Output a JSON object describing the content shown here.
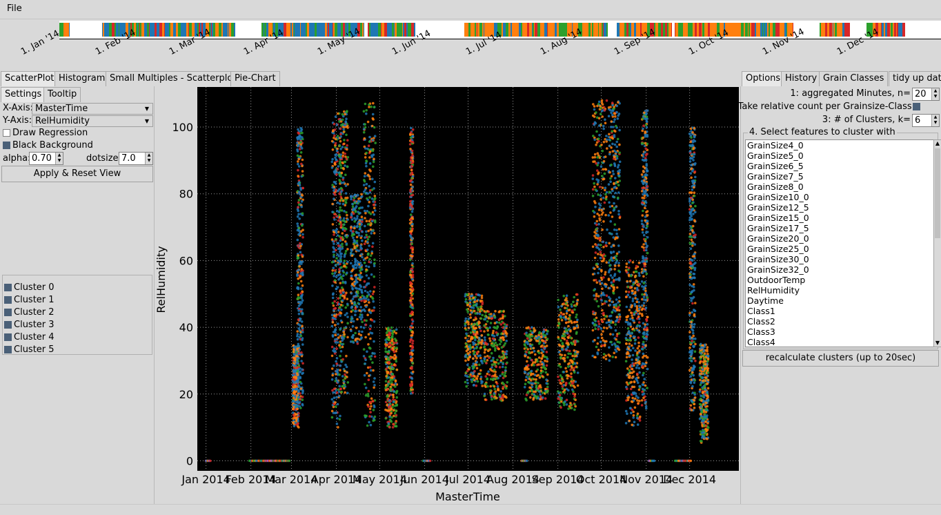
{
  "menu": {
    "file": "File"
  },
  "timeline": {
    "labels": [
      "1. Jan '14",
      "1. Feb '14",
      "1. Mar '14",
      "1. Apr '14",
      "1. May '14",
      "1. Jun '14",
      "1. Jul '14",
      "1. Aug '14",
      "1. Sep '14",
      "1. Oct '14",
      "1. Nov '14",
      "1. Dec '14"
    ],
    "colors": {
      "blue": "#1f77b4",
      "orange": "#ff7f0e",
      "green": "#2ca02c",
      "red": "#d62728",
      "purple": "#9467bd",
      "brown": "#8c564b"
    }
  },
  "tabs": {
    "main": [
      "ScatterPlot",
      "Histogram",
      "Small Multiples - Scatterplot",
      "Pie-Chart"
    ],
    "active_main": "ScatterPlot",
    "left": [
      "Settings",
      "Tooltip"
    ],
    "right": [
      "Options",
      "History",
      "Grain Classes",
      "tidy up data"
    ]
  },
  "settings": {
    "x_axis_label": "X-Axis:",
    "x_axis_value": "MasterTime",
    "y_axis_label": "Y-Axis:",
    "y_axis_value": "RelHumidity",
    "draw_regression": "Draw Regression",
    "draw_regression_checked": false,
    "black_background": "Black Background",
    "black_background_checked": true,
    "alpha_label": "alpha:",
    "alpha_value": "0.70",
    "dotsize_label": "dotsize:",
    "dotsize_value": "7.0",
    "apply_button": "Apply & Reset View",
    "clusters": [
      "Cluster 0",
      "Cluster 1",
      "Cluster 2",
      "Cluster 3",
      "Cluster 4",
      "Cluster 5"
    ]
  },
  "options": {
    "aggregated_label": "1: aggregated Minutes, n=",
    "aggregated_value": "20",
    "relative_count_label": "2: Take relative count per Grainsize-Class:",
    "clusters_label": "3: # of Clusters, k=",
    "clusters_value": "6",
    "features_label": "4. Select features to cluster with",
    "features": [
      "GrainSize4_0",
      "GrainSize5_0",
      "GrainSize6_5",
      "GrainSize7_5",
      "GrainSize8_0",
      "GrainSize10_0",
      "GrainSize12_5",
      "GrainSize15_0",
      "GrainSize17_5",
      "GrainSize20_0",
      "GrainSize25_0",
      "GrainSize30_0",
      "GrainSize32_0",
      "OutdoorTemp",
      "RelHumidity",
      "Daytime",
      "Class1",
      "Class2",
      "Class3",
      "Class4"
    ],
    "recalc_button": "recalculate clusters (up to 20sec)"
  },
  "chart_data": {
    "type": "scatter",
    "xlabel": "MasterTime",
    "ylabel": "RelHumidity",
    "x_tick_labels": [
      "Jan 2014",
      "Feb 2014",
      "Mar 2014",
      "Apr 2014",
      "May 2014",
      "Jun 2014",
      "Jul 2014",
      "Aug 2014",
      "Sep 2014",
      "Oct 2014",
      "Nov 2014",
      "Dec 2014"
    ],
    "y_ticks": [
      0,
      20,
      40,
      60,
      80,
      100
    ],
    "ylim": [
      -3,
      112
    ],
    "xlim_days": [
      -6,
      368
    ],
    "background": "#000000",
    "grid": true,
    "series": [
      {
        "name": "Cluster 0",
        "color": "#1f77b4"
      },
      {
        "name": "Cluster 1",
        "color": "#ff7f0e"
      },
      {
        "name": "Cluster 2",
        "color": "#2ca02c"
      },
      {
        "name": "Cluster 3",
        "color": "#d62728"
      },
      {
        "name": "Cluster 4",
        "color": "#9467bd"
      },
      {
        "name": "Cluster 5",
        "color": "#8c564b"
      }
    ],
    "clumps": [
      {
        "day": 62,
        "spread": 2,
        "min": 10,
        "max": 35,
        "weights": [
          0.45,
          0.35,
          0.1,
          0.1
        ]
      },
      {
        "day": 65,
        "spread": 2,
        "min": 15,
        "max": 100,
        "weights": [
          0.55,
          0.2,
          0.1,
          0.15
        ]
      },
      {
        "day": 90,
        "spread": 3,
        "min": 10,
        "max": 105,
        "weights": [
          0.5,
          0.2,
          0.1,
          0.2
        ]
      },
      {
        "day": 95,
        "spread": 3,
        "min": 20,
        "max": 105,
        "weights": [
          0.35,
          0.25,
          0.3,
          0.1
        ]
      },
      {
        "day": 104,
        "spread": 4,
        "min": 35,
        "max": 80,
        "weights": [
          0.6,
          0.2,
          0.15,
          0.05
        ]
      },
      {
        "day": 113,
        "spread": 4,
        "min": 10,
        "max": 108,
        "weights": [
          0.4,
          0.25,
          0.25,
          0.1
        ]
      },
      {
        "day": 128,
        "spread": 4,
        "min": 10,
        "max": 40,
        "weights": [
          0.1,
          0.3,
          0.4,
          0.2
        ]
      },
      {
        "day": 142,
        "spread": 1,
        "min": 20,
        "max": 100,
        "weights": [
          0.2,
          0.3,
          0.1,
          0.4
        ]
      },
      {
        "day": 185,
        "spread": 6,
        "min": 22,
        "max": 50,
        "weights": [
          0.25,
          0.45,
          0.25,
          0.05
        ]
      },
      {
        "day": 200,
        "spread": 8,
        "min": 18,
        "max": 45,
        "weights": [
          0.15,
          0.4,
          0.3,
          0.15
        ]
      },
      {
        "day": 228,
        "spread": 8,
        "min": 18,
        "max": 40,
        "weights": [
          0.2,
          0.35,
          0.35,
          0.1
        ]
      },
      {
        "day": 250,
        "spread": 7,
        "min": 15,
        "max": 50,
        "weights": [
          0.15,
          0.4,
          0.35,
          0.1
        ]
      },
      {
        "day": 272,
        "spread": 5,
        "min": 30,
        "max": 108,
        "weights": [
          0.3,
          0.45,
          0.15,
          0.1
        ]
      },
      {
        "day": 282,
        "spread": 4,
        "min": 30,
        "max": 108,
        "weights": [
          0.55,
          0.3,
          0.1,
          0.05
        ]
      },
      {
        "day": 295,
        "spread": 5,
        "min": 10,
        "max": 60,
        "weights": [
          0.35,
          0.4,
          0.1,
          0.15
        ]
      },
      {
        "day": 303,
        "spread": 2,
        "min": 15,
        "max": 105,
        "weights": [
          0.5,
          0.3,
          0.1,
          0.1
        ]
      },
      {
        "day": 336,
        "spread": 2,
        "min": 15,
        "max": 100,
        "weights": [
          0.55,
          0.3,
          0.1,
          0.05
        ]
      },
      {
        "day": 344,
        "spread": 3,
        "min": 5,
        "max": 35,
        "weights": [
          0.3,
          0.4,
          0.25,
          0.05
        ]
      }
    ],
    "zero_line_days": [
      [
        0,
        3
      ],
      [
        30,
        58
      ],
      [
        150,
        155
      ],
      [
        218,
        222
      ],
      [
        306,
        310
      ],
      [
        324,
        335
      ]
    ]
  }
}
